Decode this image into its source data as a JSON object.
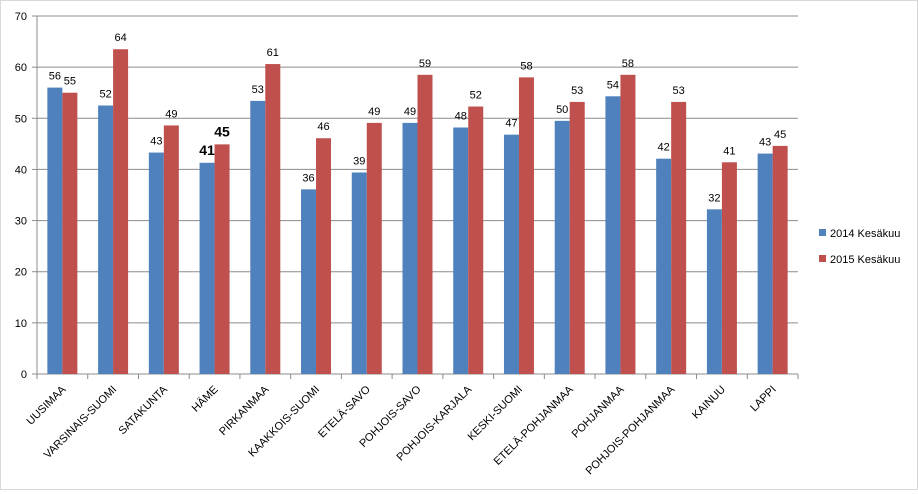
{
  "chart_data": {
    "type": "bar",
    "categories": [
      "UUSIMAA",
      "VARSINAIS-SUOMI",
      "SATAKUNTA",
      "HÄME",
      "PIRKANMAA",
      "KAAKKOIS-SUOMI",
      "ETELÄ-SAVO",
      "POHJOIS-SAVO",
      "POHJOIS-KARJALA",
      "KESKI-SUOMI",
      "ETELÄ-POHJANMAA",
      "POHJANMAA",
      "POHJOIS-POHJANMAA",
      "KAINUU",
      "LAPPI"
    ],
    "series": [
      {
        "name": "2014 Kesäkuu",
        "values": [
          56,
          52.5,
          43.3,
          41.3,
          53.4,
          36.1,
          39.4,
          49.1,
          48.2,
          46.8,
          49.5,
          54.3,
          42.1,
          32.2,
          43.1
        ],
        "labels": [
          "56",
          "52",
          "43",
          "41",
          "53",
          "36",
          "39",
          "49",
          "48",
          "47",
          "50",
          "54",
          "42",
          "32",
          "43"
        ],
        "color": "#4f81bd"
      },
      {
        "name": "2015 Kesäkuu",
        "values": [
          55,
          63.5,
          48.6,
          44.9,
          60.6,
          46.1,
          49.1,
          58.5,
          52.3,
          58.0,
          53.2,
          58.5,
          53.2,
          41.4,
          44.6
        ],
        "labels": [
          "55",
          "64",
          "49",
          "45",
          "61",
          "46",
          "49",
          "59",
          "52",
          "58",
          "53",
          "58",
          "53",
          "41",
          "45"
        ],
        "color": "#c0504d"
      }
    ],
    "emphasized_category": "HÄME",
    "yticks": [
      "0",
      "10",
      "20",
      "30",
      "40",
      "50",
      "60",
      "70"
    ],
    "ylim": [
      0,
      70
    ],
    "grid": true,
    "legend_position": "right",
    "title": "",
    "xlabel": "",
    "ylabel": ""
  }
}
